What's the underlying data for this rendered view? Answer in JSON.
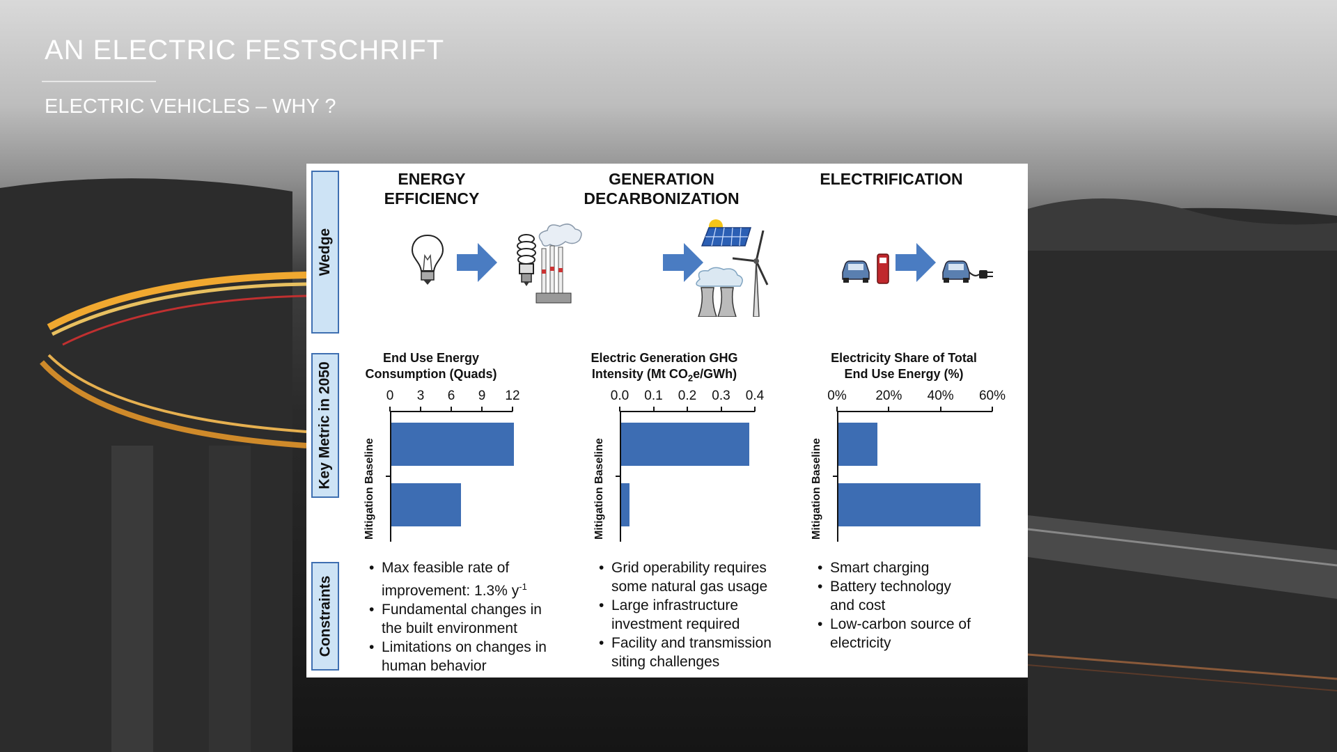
{
  "slide": {
    "title": "AN ELECTRIC FESTSCHRIFT",
    "subtitle": "ELECTRIC VEHICLES – WHY ?"
  },
  "rows": {
    "wedge": "Wedge",
    "key_metric": "Key Metric in 2050",
    "constraints": "Constraints"
  },
  "columns": [
    {
      "head_line1": "ENERGY",
      "head_line2": "EFFICIENCY",
      "chart_title_line1": "End Use Energy",
      "chart_title_line2": "Consumption (Quads)",
      "ylabel": "Mitigation Baseline",
      "ticks": [
        "0",
        "3",
        "6",
        "9",
        "12"
      ],
      "bullets": [
        {
          "l1": "Max feasible rate of",
          "l2": "improvement: 1.3% y",
          "sup": "-1"
        },
        {
          "l1": "Fundamental changes in",
          "l2": "the built environment"
        },
        {
          "l1": "Limitations on changes in",
          "l2": "human behavior"
        }
      ],
      "icons": [
        "incandescent-bulb-icon",
        "arrow-right-icon",
        "cfl-bulb-icon"
      ]
    },
    {
      "head_line1": "GENERATION",
      "head_line2": "DECARBONIZATION",
      "chart_title_line1": "Electric Generation GHG",
      "chart_title_pre": "Intensity (Mt CO",
      "chart_title_sub": "2",
      "chart_title_post": "e/GWh)",
      "ylabel": "Mitigation Baseline",
      "ticks": [
        "0.0",
        "0.1",
        "0.2",
        "0.3",
        "0.4"
      ],
      "bullets": [
        {
          "l1": "Grid operability requires",
          "l2": "some natural gas usage"
        },
        {
          "l1": "Large infrastructure",
          "l2": "investment required"
        },
        {
          "l1": "Facility and transmission",
          "l2": "siting challenges"
        }
      ],
      "icons": [
        "smokestack-icon",
        "arrow-right-icon",
        "solar-panel-icon",
        "wind-turbine-icon",
        "cooling-tower-icon"
      ]
    },
    {
      "head_line1": "ELECTRIFICATION",
      "chart_title_line1": "Electricity Share of Total",
      "chart_title_line2": "End Use Energy (%)",
      "ylabel": "Mitigation Baseline",
      "ticks": [
        "0%",
        "20%",
        "40%",
        "60%"
      ],
      "bullets": [
        {
          "l1": "Smart charging"
        },
        {
          "l1": "Battery technology",
          "l2": "and cost"
        },
        {
          "l1": "Low-carbon source of",
          "l2": "electricity"
        }
      ],
      "icons": [
        "car-icon",
        "fuel-pump-icon",
        "arrow-right-icon",
        "car-icon",
        "plug-icon"
      ]
    }
  ],
  "chart_data": [
    {
      "type": "bar",
      "title": "End Use Energy Consumption (Quads)",
      "categories": [
        "Baseline",
        "Mitigation"
      ],
      "values": [
        12,
        6.8
      ],
      "xlim": [
        0,
        12
      ],
      "orientation": "horizontal",
      "color": "#3d6db3"
    },
    {
      "type": "bar",
      "title": "Electric Generation GHG Intensity (Mt CO2e/GWh)",
      "categories": [
        "Baseline",
        "Mitigation"
      ],
      "values": [
        0.38,
        0.025
      ],
      "xlim": [
        0,
        0.4
      ],
      "orientation": "horizontal",
      "color": "#3d6db3"
    },
    {
      "type": "bar",
      "title": "Electricity Share of Total End Use Energy (%)",
      "categories": [
        "Baseline",
        "Mitigation"
      ],
      "values": [
        15,
        55
      ],
      "xlim": [
        0,
        60
      ],
      "orientation": "horizontal",
      "color": "#3d6db3"
    }
  ],
  "colors": {
    "bar": "#3d6db3",
    "row_label_fill": "#cde3f5",
    "row_label_border": "#3e6fb1",
    "arrow": "#4a7cc2",
    "pump": "#c0282d"
  }
}
